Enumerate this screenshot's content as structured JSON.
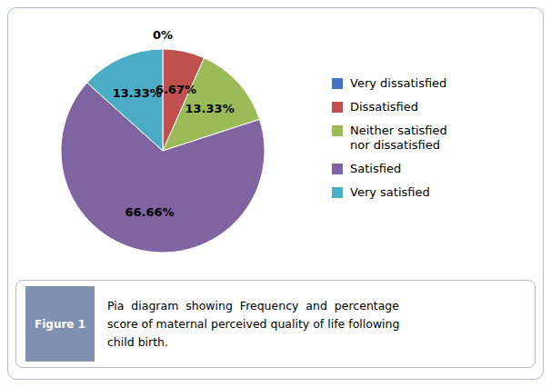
{
  "chart_data": {
    "type": "pie",
    "categories": [
      "Very dissatisfied",
      "Dissatisfied",
      "Neither satisfied\nnor dissatisfied",
      "Satisfied",
      "Very satisfied"
    ],
    "values": [
      0.0,
      6.67,
      13.33,
      66.66,
      13.33
    ],
    "value_labels": [
      "0%",
      "6.67%",
      "13.33%",
      "66.66%",
      "13.33%"
    ],
    "colors": [
      "#4472C4",
      "#C0504D",
      "#9BBB59",
      "#8064A2",
      "#4BACC6"
    ],
    "data_labels": true,
    "legend": "right",
    "annotations": [
      "Figure 1",
      "Pia  diagram  showing  Frequency  and  percentage",
      "score of maternal perceived quality of life following",
      "child birth."
    ]
  }
}
